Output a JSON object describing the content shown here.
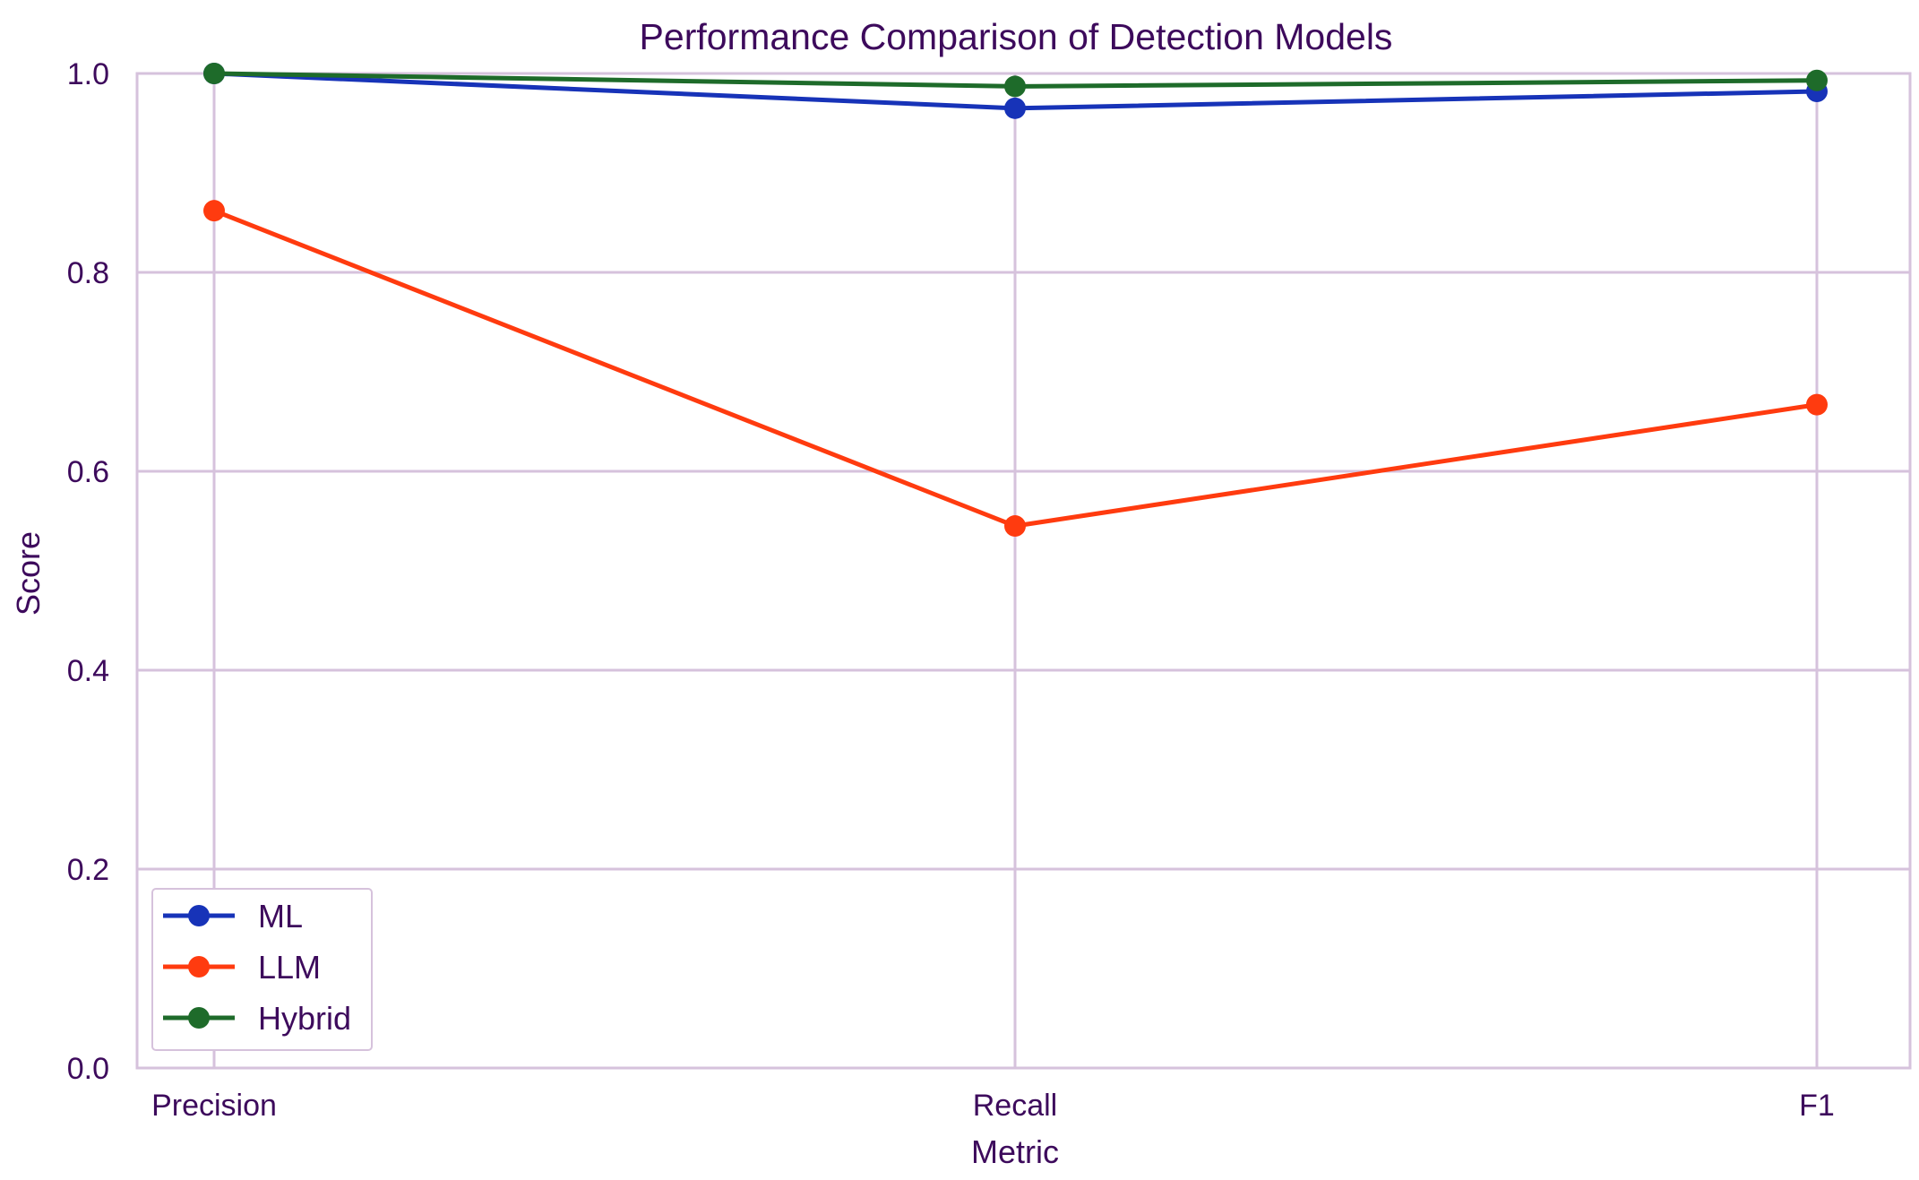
{
  "chart_data": {
    "type": "line",
    "title": "Performance Comparison of Detection Models",
    "xlabel": "Metric",
    "ylabel": "Score",
    "categories": [
      "Precision",
      "Recall",
      "F1"
    ],
    "ylim": [
      0,
      1.0
    ],
    "yticks": [
      "0.0",
      "0.2",
      "0.4",
      "0.6",
      "0.8",
      "1.0"
    ],
    "grid": true,
    "legend_position": "bottom-left",
    "series": [
      {
        "name": "ML",
        "values": [
          1.0,
          0.965,
          0.982
        ],
        "color": "#1733b8"
      },
      {
        "name": "LLM",
        "values": [
          0.862,
          0.545,
          0.667
        ],
        "color": "#ff3b0f"
      },
      {
        "name": "Hybrid",
        "values": [
          1.0,
          0.987,
          0.993
        ],
        "color": "#1e6b2a"
      }
    ],
    "grid_color": "#d6c2dc",
    "text_color": "#3d0a5c"
  }
}
